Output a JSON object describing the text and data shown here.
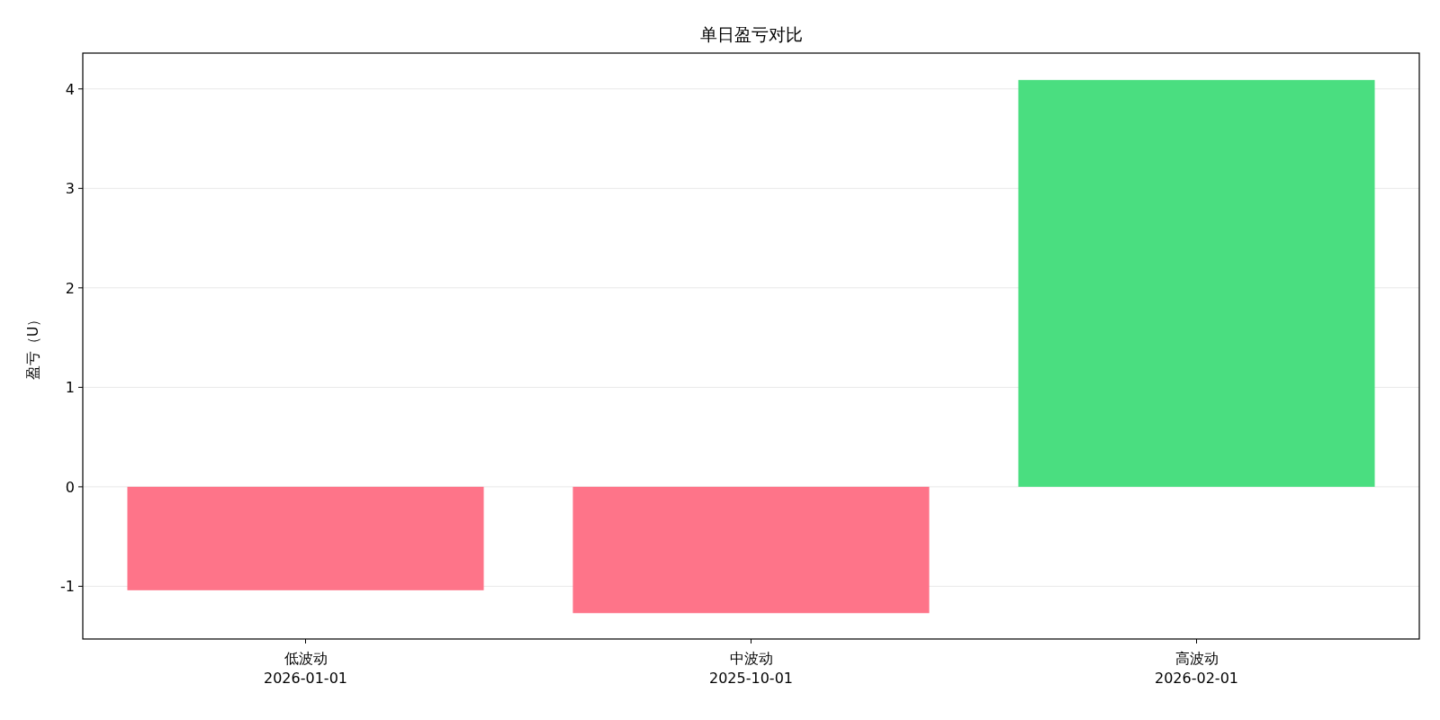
{
  "chart_data": {
    "type": "bar",
    "title": "单日盈亏对比",
    "ylabel": "盈亏（U）",
    "categories": [
      "低波动\n2026-01-01",
      "中波动\n2025-10-01",
      "高波动\n2026-02-01"
    ],
    "values": [
      -1.04,
      -1.27,
      4.09
    ],
    "colors": [
      "#fe7489",
      "#fe7489",
      "#4ade80"
    ],
    "ylim": [
      -1.53,
      4.36
    ],
    "yticks": [
      {
        "value": -1,
        "label": "-1"
      },
      0,
      1,
      2,
      3,
      4
    ],
    "grid": "y"
  }
}
